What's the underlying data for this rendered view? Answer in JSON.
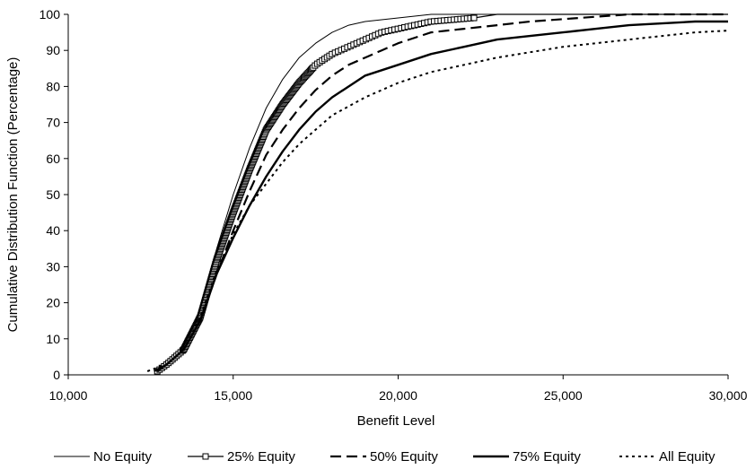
{
  "chart_data": {
    "type": "line",
    "title": "",
    "xlabel": "Benefit Level",
    "ylabel": "Cumulative Distribution Function (Percentage)",
    "xlim": [
      10000,
      30000
    ],
    "ylim": [
      0,
      100
    ],
    "x_ticks": [
      10000,
      15000,
      20000,
      25000,
      30000
    ],
    "x_tick_labels": [
      "10,000",
      "15,000",
      "20,000",
      "25,000",
      "30,000"
    ],
    "y_ticks": [
      0,
      10,
      20,
      30,
      40,
      50,
      60,
      70,
      80,
      90,
      100
    ],
    "y_tick_labels": [
      "0",
      "10",
      "20",
      "30",
      "40",
      "50",
      "60",
      "70",
      "80",
      "90",
      "100"
    ],
    "grid": false,
    "legend_position": "bottom",
    "series": [
      {
        "name": "No Equity",
        "style": "thin-solid",
        "color": "#000000",
        "points": [
          [
            12700,
            1
          ],
          [
            13000,
            3
          ],
          [
            13500,
            8
          ],
          [
            14000,
            18
          ],
          [
            14500,
            35
          ],
          [
            15000,
            50
          ],
          [
            15500,
            63
          ],
          [
            16000,
            74
          ],
          [
            16500,
            82
          ],
          [
            17000,
            88
          ],
          [
            17500,
            92
          ],
          [
            18000,
            95
          ],
          [
            18500,
            97
          ],
          [
            19000,
            98
          ],
          [
            20000,
            99
          ],
          [
            21000,
            100
          ],
          [
            30000,
            100
          ]
        ]
      },
      {
        "name": "25% Equity",
        "style": "solid-square-markers",
        "color": "#000000",
        "points": [
          [
            12700,
            1
          ],
          [
            13000,
            3
          ],
          [
            13500,
            7
          ],
          [
            14000,
            16
          ],
          [
            14500,
            32
          ],
          [
            15000,
            45
          ],
          [
            15500,
            57
          ],
          [
            16000,
            68
          ],
          [
            16500,
            75
          ],
          [
            17000,
            81
          ],
          [
            17500,
            86
          ],
          [
            18000,
            89
          ],
          [
            18500,
            91
          ],
          [
            19000,
            93
          ],
          [
            19500,
            95
          ],
          [
            20000,
            96
          ],
          [
            21000,
            98
          ],
          [
            22300,
            99
          ],
          [
            23000,
            100
          ],
          [
            30000,
            100
          ]
        ]
      },
      {
        "name": "50% Equity",
        "style": "long-dash",
        "color": "#000000",
        "points": [
          [
            12600,
            1
          ],
          [
            13000,
            3
          ],
          [
            13500,
            7
          ],
          [
            14000,
            15
          ],
          [
            14500,
            28
          ],
          [
            15000,
            40
          ],
          [
            15500,
            51
          ],
          [
            16000,
            61
          ],
          [
            16500,
            68
          ],
          [
            17000,
            74
          ],
          [
            17500,
            79
          ],
          [
            18000,
            83
          ],
          [
            18500,
            86
          ],
          [
            19000,
            88
          ],
          [
            19500,
            90
          ],
          [
            20000,
            92
          ],
          [
            21000,
            95
          ],
          [
            22000,
            96
          ],
          [
            23000,
            97
          ],
          [
            24000,
            98
          ],
          [
            25500,
            99
          ],
          [
            27000,
            100
          ],
          [
            30000,
            100
          ]
        ]
      },
      {
        "name": "75% Equity",
        "style": "thick-solid",
        "color": "#000000",
        "points": [
          [
            12700,
            1
          ],
          [
            13000,
            3
          ],
          [
            13500,
            7
          ],
          [
            14000,
            15
          ],
          [
            14500,
            28
          ],
          [
            15000,
            38
          ],
          [
            15500,
            47
          ],
          [
            16000,
            55
          ],
          [
            16500,
            62
          ],
          [
            17000,
            68
          ],
          [
            17500,
            73
          ],
          [
            18000,
            77
          ],
          [
            19000,
            83
          ],
          [
            20000,
            86
          ],
          [
            21000,
            89
          ],
          [
            22000,
            91
          ],
          [
            23000,
            93
          ],
          [
            24000,
            94
          ],
          [
            25000,
            95
          ],
          [
            26000,
            96
          ],
          [
            27000,
            97
          ],
          [
            28000,
            97.5
          ],
          [
            29000,
            98
          ],
          [
            30000,
            98
          ]
        ]
      },
      {
        "name": "All Equity",
        "style": "dotted",
        "color": "#000000",
        "points": [
          [
            12400,
            1
          ],
          [
            12700,
            2
          ],
          [
            13000,
            3
          ],
          [
            13500,
            7
          ],
          [
            14000,
            16
          ],
          [
            14500,
            29
          ],
          [
            15000,
            39
          ],
          [
            15500,
            47
          ],
          [
            16000,
            53
          ],
          [
            16500,
            59
          ],
          [
            17000,
            64
          ],
          [
            17500,
            68
          ],
          [
            18000,
            72
          ],
          [
            19000,
            77
          ],
          [
            20000,
            81
          ],
          [
            21000,
            84
          ],
          [
            22000,
            86
          ],
          [
            23000,
            88
          ],
          [
            24000,
            89.5
          ],
          [
            25000,
            91
          ],
          [
            26000,
            92
          ],
          [
            27000,
            93
          ],
          [
            28000,
            94
          ],
          [
            29000,
            95
          ],
          [
            30000,
            95.5
          ]
        ]
      }
    ]
  }
}
